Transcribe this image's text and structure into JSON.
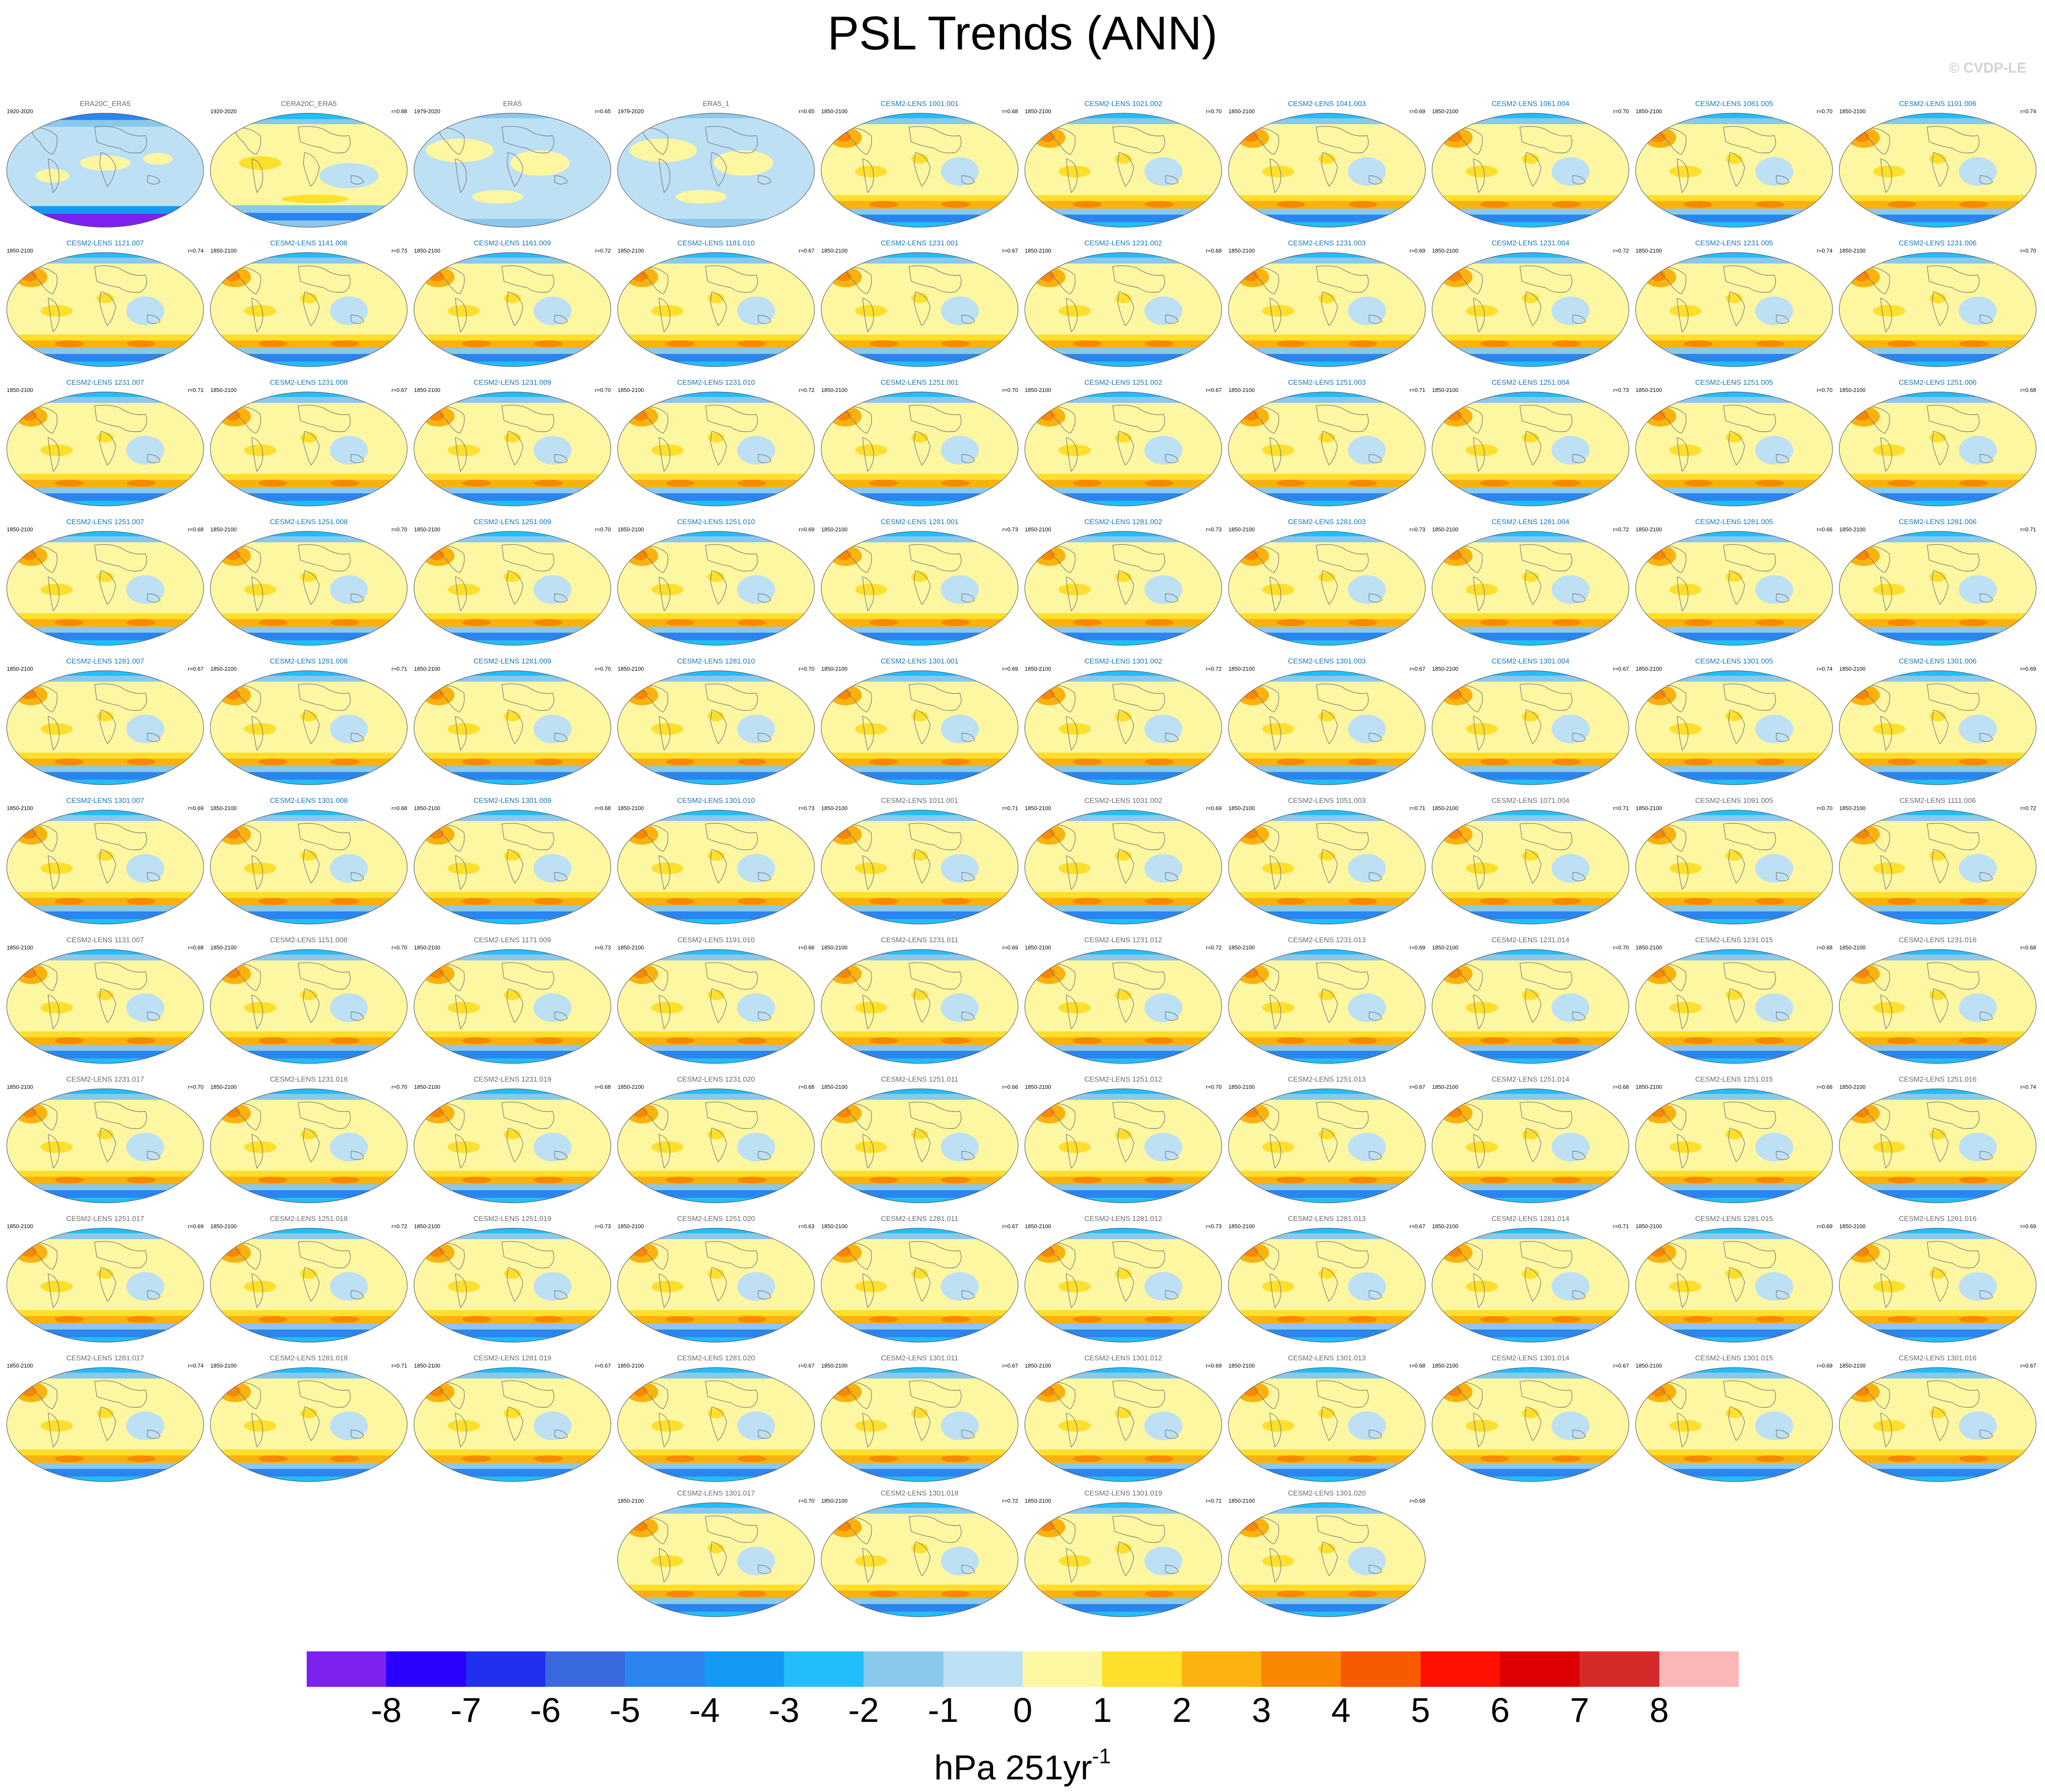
{
  "title": "PSL Trends (ANN)",
  "watermark": "© CVDP-LE",
  "colors": {
    "obs_title": "#6a6a6a",
    "model_title": "#1576b8",
    "land_outline": "#7a7a7a",
    "levels": [
      "#7d21f0",
      "#2a00ff",
      "#2030ee",
      "#3a68dd",
      "#2a85f0",
      "#149af5",
      "#22bdfa",
      "#8ac8ec",
      "#bde0f5",
      "#fdf7a1",
      "#fddf2c",
      "#fbb20f",
      "#fa8700",
      "#f85a00",
      "#ff1000",
      "#dc0000",
      "#d42a2a",
      "#fbb6b8"
    ]
  },
  "chart_data": {
    "type": "map-panels",
    "colorbar": {
      "ticks": [
        "-8",
        "-7",
        "-6",
        "-5",
        "-4",
        "-3",
        "-2",
        "-1",
        "0",
        "1",
        "2",
        "3",
        "4",
        "5",
        "6",
        "7",
        "8"
      ],
      "units_base": "hPa 251yr",
      "units_sup": "-1"
    },
    "panels": [
      {
        "title": "ERA20C_ERA5",
        "years": "1920-2020",
        "r": "",
        "obs": true,
        "style": 0
      },
      {
        "title": "CERA20C_ERA5",
        "years": "1920-2020",
        "r": "r=0.88",
        "obs": true,
        "style": 1
      },
      {
        "title": "ERA5",
        "years": "1979-2020",
        "r": "r=0.65",
        "obs": true,
        "style": 2
      },
      {
        "title": "ERA5_1",
        "years": "1979-2020",
        "r": "r=0.65",
        "obs": true,
        "style": 2
      },
      {
        "title": "CESM2-LENS 1001.001",
        "years": "1850-2100",
        "r": "r=0.68",
        "obs": false,
        "style": 3
      },
      {
        "title": "CESM2-LENS 1021.002",
        "years": "1850-2100",
        "r": "r=0.70",
        "obs": false,
        "style": 3
      },
      {
        "title": "CESM2-LENS 1041.003",
        "years": "1850-2100",
        "r": "r=0.69",
        "obs": false,
        "style": 3
      },
      {
        "title": "CESM2-LENS 1061.004",
        "years": "1850-2100",
        "r": "r=0.70",
        "obs": false,
        "style": 3
      },
      {
        "title": "CESM2-LENS 1081.005",
        "years": "1850-2100",
        "r": "r=0.70",
        "obs": false,
        "style": 3
      },
      {
        "title": "CESM2-LENS 1101.006",
        "years": "1850-2100",
        "r": "r=0.74",
        "obs": false,
        "style": 3
      },
      {
        "title": "CESM2-LENS 1121.007",
        "years": "1850-2100",
        "r": "r=0.74",
        "obs": false,
        "style": 3
      },
      {
        "title": "CESM2-LENS 1141.008",
        "years": "1850-2100",
        "r": "r=0.73",
        "obs": false,
        "style": 3
      },
      {
        "title": "CESM2-LENS 1161.009",
        "years": "1850-2100",
        "r": "r=0.72",
        "obs": false,
        "style": 3
      },
      {
        "title": "CESM2-LENS 1181.010",
        "years": "1850-2100",
        "r": "r=0.67",
        "obs": false,
        "style": 3
      },
      {
        "title": "CESM2-LENS 1231.001",
        "years": "1850-2100",
        "r": "r=0.67",
        "obs": false,
        "style": 3
      },
      {
        "title": "CESM2-LENS 1231.002",
        "years": "1850-2100",
        "r": "r=0.68",
        "obs": false,
        "style": 3
      },
      {
        "title": "CESM2-LENS 1231.003",
        "years": "1850-2100",
        "r": "r=0.69",
        "obs": false,
        "style": 3
      },
      {
        "title": "CESM2-LENS 1231.004",
        "years": "1850-2100",
        "r": "r=0.72",
        "obs": false,
        "style": 3
      },
      {
        "title": "CESM2-LENS 1231.005",
        "years": "1850-2100",
        "r": "r=0.74",
        "obs": false,
        "style": 3
      },
      {
        "title": "CESM2-LENS 1231.006",
        "years": "1850-2100",
        "r": "r=0.70",
        "obs": false,
        "style": 3
      },
      {
        "title": "CESM2-LENS 1231.007",
        "years": "1850-2100",
        "r": "r=0.71",
        "obs": false,
        "style": 3
      },
      {
        "title": "CESM2-LENS 1231.008",
        "years": "1850-2100",
        "r": "r=0.67",
        "obs": false,
        "style": 3
      },
      {
        "title": "CESM2-LENS 1231.009",
        "years": "1850-2100",
        "r": "r=0.70",
        "obs": false,
        "style": 3
      },
      {
        "title": "CESM2-LENS 1231.010",
        "years": "1850-2100",
        "r": "r=0.72",
        "obs": false,
        "style": 3
      },
      {
        "title": "CESM2-LENS 1251.001",
        "years": "1850-2100",
        "r": "r=0.70",
        "obs": false,
        "style": 3
      },
      {
        "title": "CESM2-LENS 1251.002",
        "years": "1850-2100",
        "r": "r=0.67",
        "obs": false,
        "style": 3
      },
      {
        "title": "CESM2-LENS 1251.003",
        "years": "1850-2100",
        "r": "r=0.71",
        "obs": false,
        "style": 3
      },
      {
        "title": "CESM2-LENS 1251.004",
        "years": "1850-2100",
        "r": "r=0.73",
        "obs": false,
        "style": 3
      },
      {
        "title": "CESM2-LENS 1251.005",
        "years": "1850-2100",
        "r": "r=0.70",
        "obs": false,
        "style": 3
      },
      {
        "title": "CESM2-LENS 1251.006",
        "years": "1850-2100",
        "r": "r=0.68",
        "obs": false,
        "style": 3
      },
      {
        "title": "CESM2-LENS 1251.007",
        "years": "1850-2100",
        "r": "r=0.68",
        "obs": false,
        "style": 3
      },
      {
        "title": "CESM2-LENS 1251.008",
        "years": "1850-2100",
        "r": "r=0.70",
        "obs": false,
        "style": 3
      },
      {
        "title": "CESM2-LENS 1251.009",
        "years": "1850-2100",
        "r": "r=0.70",
        "obs": false,
        "style": 3
      },
      {
        "title": "CESM2-LENS 1251.010",
        "years": "1850-2100",
        "r": "r=0.69",
        "obs": false,
        "style": 3
      },
      {
        "title": "CESM2-LENS 1281.001",
        "years": "1850-2100",
        "r": "r=0.73",
        "obs": false,
        "style": 3
      },
      {
        "title": "CESM2-LENS 1281.002",
        "years": "1850-2100",
        "r": "r=0.73",
        "obs": false,
        "style": 3
      },
      {
        "title": "CESM2-LENS 1281.003",
        "years": "1850-2100",
        "r": "r=0.73",
        "obs": false,
        "style": 3
      },
      {
        "title": "CESM2-LENS 1281.004",
        "years": "1850-2100",
        "r": "r=0.72",
        "obs": false,
        "style": 3
      },
      {
        "title": "CESM2-LENS 1281.005",
        "years": "1850-2100",
        "r": "r=0.66",
        "obs": false,
        "style": 3
      },
      {
        "title": "CESM2-LENS 1281.006",
        "years": "1850-2100",
        "r": "r=0.71",
        "obs": false,
        "style": 3
      },
      {
        "title": "CESM2-LENS 1281.007",
        "years": "1850-2100",
        "r": "r=0.67",
        "obs": false,
        "style": 3
      },
      {
        "title": "CESM2-LENS 1281.008",
        "years": "1850-2100",
        "r": "r=0.71",
        "obs": false,
        "style": 3
      },
      {
        "title": "CESM2-LENS 1281.009",
        "years": "1850-2100",
        "r": "r=0.70",
        "obs": false,
        "style": 3
      },
      {
        "title": "CESM2-LENS 1281.010",
        "years": "1850-2100",
        "r": "r=0.70",
        "obs": false,
        "style": 3
      },
      {
        "title": "CESM2-LENS 1301.001",
        "years": "1850-2100",
        "r": "r=0.69",
        "obs": false,
        "style": 3
      },
      {
        "title": "CESM2-LENS 1301.002",
        "years": "1850-2100",
        "r": "r=0.72",
        "obs": false,
        "style": 3
      },
      {
        "title": "CESM2-LENS 1301.003",
        "years": "1850-2100",
        "r": "r=0.67",
        "obs": false,
        "style": 3
      },
      {
        "title": "CESM2-LENS 1301.004",
        "years": "1850-2100",
        "r": "r=0.67",
        "obs": false,
        "style": 3
      },
      {
        "title": "CESM2-LENS 1301.005",
        "years": "1850-2100",
        "r": "r=0.74",
        "obs": false,
        "style": 3
      },
      {
        "title": "CESM2-LENS 1301.006",
        "years": "1850-2100",
        "r": "r=0.69",
        "obs": false,
        "style": 3
      },
      {
        "title": "CESM2-LENS 1301.007",
        "years": "1850-2100",
        "r": "r=0.69",
        "obs": false,
        "style": 3
      },
      {
        "title": "CESM2-LENS 1301.008",
        "years": "1850-2100",
        "r": "r=0.68",
        "obs": false,
        "style": 3
      },
      {
        "title": "CESM2-LENS 1301.009",
        "years": "1850-2100",
        "r": "r=0.68",
        "obs": false,
        "style": 3
      },
      {
        "title": "CESM2-LENS 1301.010",
        "years": "1850-2100",
        "r": "r=0.73",
        "obs": false,
        "style": 3
      },
      {
        "title": "CESM2-LENS 1011.001",
        "years": "1850-2100",
        "r": "r=0.71",
        "obs": true,
        "style": 3
      },
      {
        "title": "CESM2-LENS 1031.002",
        "years": "1850-2100",
        "r": "r=0.69",
        "obs": true,
        "style": 3
      },
      {
        "title": "CESM2-LENS 1051.003",
        "years": "1850-2100",
        "r": "r=0.71",
        "obs": true,
        "style": 3
      },
      {
        "title": "CESM2-LENS 1071.004",
        "years": "1850-2100",
        "r": "r=0.71",
        "obs": true,
        "style": 3
      },
      {
        "title": "CESM2-LENS 1091.005",
        "years": "1850-2100",
        "r": "r=0.70",
        "obs": true,
        "style": 3
      },
      {
        "title": "CESM2-LENS 1111.006",
        "years": "1850-2100",
        "r": "r=0.72",
        "obs": true,
        "style": 3
      },
      {
        "title": "CESM2-LENS 1131.007",
        "years": "1850-2100",
        "r": "r=0.68",
        "obs": true,
        "style": 3
      },
      {
        "title": "CESM2-LENS 1151.008",
        "years": "1850-2100",
        "r": "r=0.70",
        "obs": true,
        "style": 3
      },
      {
        "title": "CESM2-LENS 1171.009",
        "years": "1850-2100",
        "r": "r=0.73",
        "obs": true,
        "style": 3
      },
      {
        "title": "CESM2-LENS 1191.010",
        "years": "1850-2100",
        "r": "r=0.66",
        "obs": true,
        "style": 3
      },
      {
        "title": "CESM2-LENS 1231.011",
        "years": "1850-2100",
        "r": "r=0.69",
        "obs": true,
        "style": 3
      },
      {
        "title": "CESM2-LENS 1231.012",
        "years": "1850-2100",
        "r": "r=0.72",
        "obs": true,
        "style": 3
      },
      {
        "title": "CESM2-LENS 1231.013",
        "years": "1850-2100",
        "r": "r=0.69",
        "obs": true,
        "style": 3
      },
      {
        "title": "CESM2-LENS 1231.014",
        "years": "1850-2100",
        "r": "r=0.70",
        "obs": true,
        "style": 3
      },
      {
        "title": "CESM2-LENS 1231.015",
        "years": "1850-2100",
        "r": "r=0.68",
        "obs": true,
        "style": 3
      },
      {
        "title": "CESM2-LENS 1231.016",
        "years": "1850-2100",
        "r": "r=0.68",
        "obs": true,
        "style": 3
      },
      {
        "title": "CESM2-LENS 1231.017",
        "years": "1850-2100",
        "r": "r=0.70",
        "obs": true,
        "style": 3
      },
      {
        "title": "CESM2-LENS 1231.018",
        "years": "1850-2100",
        "r": "r=0.70",
        "obs": true,
        "style": 3
      },
      {
        "title": "CESM2-LENS 1231.019",
        "years": "1850-2100",
        "r": "r=0.68",
        "obs": true,
        "style": 3
      },
      {
        "title": "CESM2-LENS 1231.020",
        "years": "1850-2100",
        "r": "r=0.68",
        "obs": true,
        "style": 3
      },
      {
        "title": "CESM2-LENS 1251.011",
        "years": "1850-2100",
        "r": "r=0.66",
        "obs": true,
        "style": 3
      },
      {
        "title": "CESM2-LENS 1251.012",
        "years": "1850-2100",
        "r": "r=0.70",
        "obs": true,
        "style": 3
      },
      {
        "title": "CESM2-LENS 1251.013",
        "years": "1850-2100",
        "r": "r=0.67",
        "obs": true,
        "style": 3
      },
      {
        "title": "CESM2-LENS 1251.014",
        "years": "1850-2100",
        "r": "r=0.68",
        "obs": true,
        "style": 3
      },
      {
        "title": "CESM2-LENS 1251.015",
        "years": "1850-2100",
        "r": "r=0.66",
        "obs": true,
        "style": 3
      },
      {
        "title": "CESM2-LENS 1251.016",
        "years": "1850-2100",
        "r": "r=0.74",
        "obs": true,
        "style": 3
      },
      {
        "title": "CESM2-LENS 1251.017",
        "years": "1850-2100",
        "r": "r=0.69",
        "obs": true,
        "style": 3
      },
      {
        "title": "CESM2-LENS 1251.018",
        "years": "1850-2100",
        "r": "r=0.72",
        "obs": true,
        "style": 3
      },
      {
        "title": "CESM2-LENS 1251.019",
        "years": "1850-2100",
        "r": "r=0.73",
        "obs": true,
        "style": 3
      },
      {
        "title": "CESM2-LENS 1251.020",
        "years": "1850-2100",
        "r": "r=0.63",
        "obs": true,
        "style": 3
      },
      {
        "title": "CESM2-LENS 1281.011",
        "years": "1850-2100",
        "r": "r=0.67",
        "obs": true,
        "style": 3
      },
      {
        "title": "CESM2-LENS 1281.012",
        "years": "1850-2100",
        "r": "r=0.73",
        "obs": true,
        "style": 3
      },
      {
        "title": "CESM2-LENS 1281.013",
        "years": "1850-2100",
        "r": "r=0.67",
        "obs": true,
        "style": 3
      },
      {
        "title": "CESM2-LENS 1281.014",
        "years": "1850-2100",
        "r": "r=0.71",
        "obs": true,
        "style": 3
      },
      {
        "title": "CESM2-LENS 1281.015",
        "years": "1850-2100",
        "r": "r=0.69",
        "obs": true,
        "style": 3
      },
      {
        "title": "CESM2-LENS 1281.016",
        "years": "1850-2100",
        "r": "r=0.69",
        "obs": true,
        "style": 3
      },
      {
        "title": "CESM2-LENS 1281.017",
        "years": "1850-2100",
        "r": "r=0.74",
        "obs": true,
        "style": 3
      },
      {
        "title": "CESM2-LENS 1281.018",
        "years": "1850-2100",
        "r": "r=0.71",
        "obs": true,
        "style": 3
      },
      {
        "title": "CESM2-LENS 1281.019",
        "years": "1850-2100",
        "r": "r=0.67",
        "obs": true,
        "style": 3
      },
      {
        "title": "CESM2-LENS 1281.020",
        "years": "1850-2100",
        "r": "r=0.67",
        "obs": true,
        "style": 3
      },
      {
        "title": "CESM2-LENS 1301.011",
        "years": "1850-2100",
        "r": "r=0.67",
        "obs": true,
        "style": 3
      },
      {
        "title": "CESM2-LENS 1301.012",
        "years": "1850-2100",
        "r": "r=0.69",
        "obs": true,
        "style": 3
      },
      {
        "title": "CESM2-LENS 1301.013",
        "years": "1850-2100",
        "r": "r=0.68",
        "obs": true,
        "style": 3
      },
      {
        "title": "CESM2-LENS 1301.014",
        "years": "1850-2100",
        "r": "r=0.67",
        "obs": true,
        "style": 3
      },
      {
        "title": "CESM2-LENS 1301.015",
        "years": "1850-2100",
        "r": "r=0.69",
        "obs": true,
        "style": 3
      },
      {
        "title": "CESM2-LENS 1301.016",
        "years": "1850-2100",
        "r": "r=0.67",
        "obs": true,
        "style": 3
      },
      {
        "title": "CESM2-LENS 1301.017",
        "years": "1850-2100",
        "r": "r=0.70",
        "obs": true,
        "style": 3
      },
      {
        "title": "CESM2-LENS 1301.018",
        "years": "1850-2100",
        "r": "r=0.72",
        "obs": true,
        "style": 3
      },
      {
        "title": "CESM2-LENS 1301.019",
        "years": "1850-2100",
        "r": "r=0.71",
        "obs": true,
        "style": 3
      },
      {
        "title": "CESM2-LENS 1301.020",
        "years": "1850-2100",
        "r": "r=0.68",
        "obs": true,
        "style": 3
      }
    ]
  }
}
